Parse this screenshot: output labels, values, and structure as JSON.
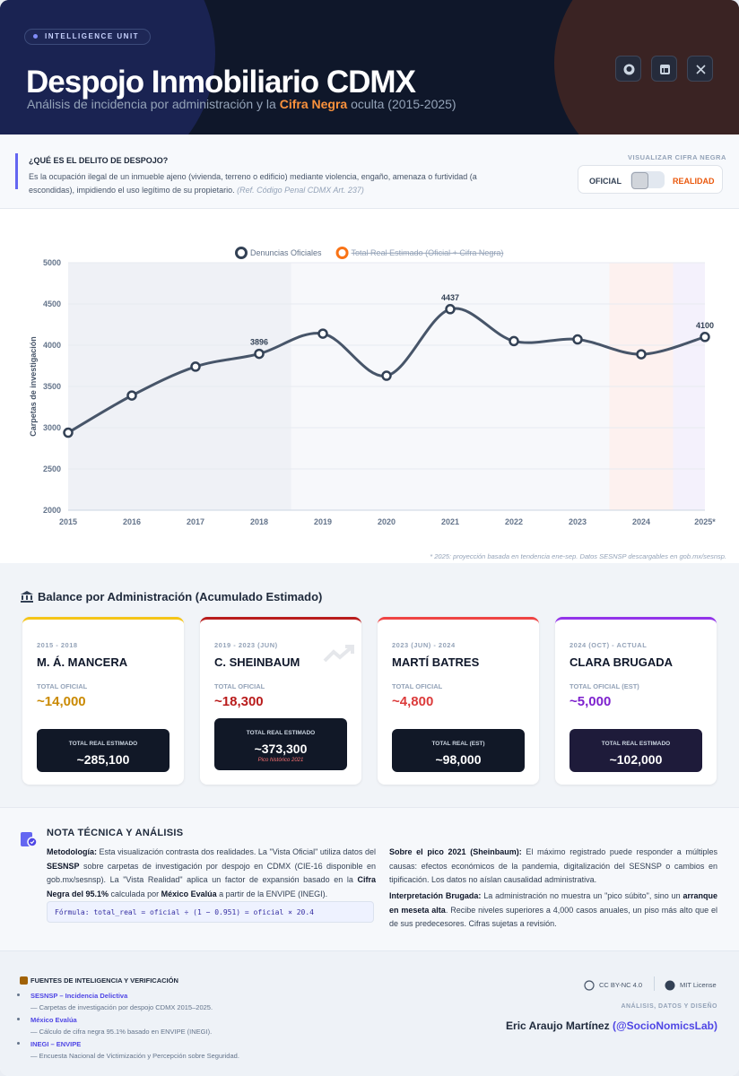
{
  "header": {
    "badge": "INTELLIGENCE UNIT",
    "title": "Despojo Inmobiliario CDMX",
    "subtitle_before": "Análisis de incidencia por administración y la",
    "subtitle_highlight": "Cifra Negra",
    "subtitle_after": "oculta (2015-2025)"
  },
  "definition": {
    "heading": "¿QUÉ ES EL DELITO DE DESPOJO?",
    "text": "Es la ocupación ilegal de un inmueble ajeno (vivienda, terreno o edificio) mediante violencia, engaño, amenaza o furtividad (a escondidas), impidiendo el uso legítimo de su propietario.",
    "ref": "(Ref. Código Penal CDMX Art. 237)"
  },
  "toggle": {
    "label": "VISUALIZAR CIFRA NEGRA",
    "left": "OFICIAL",
    "right": "REALIDAD"
  },
  "chart_data": {
    "type": "line",
    "ylabel": "Carpetas de investigación",
    "categories": [
      "2015",
      "2016",
      "2017",
      "2018",
      "2019",
      "2020",
      "2021",
      "2022",
      "2023",
      "2024",
      "2025*"
    ],
    "series": [
      {
        "name": "Denuncias Oficiales",
        "color": "#475569",
        "values": [
          2940,
          3390,
          3740,
          3896,
          4140,
          3630,
          4437,
          4050,
          4070,
          3890,
          4100
        ],
        "value_labels": [
          null,
          null,
          null,
          "3896",
          null,
          null,
          "4437",
          null,
          null,
          null,
          "4100"
        ]
      },
      {
        "name": "Total Real Estimado (Oficial + Cifra Negra)",
        "color": "#f97316",
        "hidden": true,
        "values": [
          null,
          null,
          null,
          null,
          null,
          null,
          null,
          null,
          null,
          null,
          null
        ]
      }
    ],
    "bands": [
      {
        "start": "2015",
        "end": "2018",
        "color": "#eff1f6"
      },
      {
        "start": "2019",
        "end": "2023",
        "color": "#f7f8fb"
      },
      {
        "start": "2024",
        "end": "2024",
        "color": "#fdf1ef"
      },
      {
        "start": "2025*",
        "end": "2025*",
        "color": "#f4f1fc"
      }
    ],
    "ylim": [
      2000,
      5000
    ],
    "yticks": [
      2000,
      2500,
      3000,
      3500,
      4000,
      4500,
      5000
    ],
    "grid": true,
    "legend": "top",
    "footnote": "* 2025: proyección basada en tendencia ene-sep. Datos SESNSP descargables en gob.mx/sesnsp."
  },
  "balance": {
    "title": "Balance por Administración (Acumulado Estimado)",
    "cards": [
      {
        "period": "2015 - 2018",
        "name": "M. Á. MANCERA",
        "official_label": "TOTAL OFICIAL",
        "official": "~14,000",
        "real_label": "TOTAL REAL ESTIMADO",
        "real": "~285,100",
        "accent": "#f5c518",
        "value_color": "#ca8a04",
        "box": "#111827"
      },
      {
        "period": "2019 - 2023 (JUN)",
        "name": "C. SHEINBAUM",
        "official_label": "TOTAL OFICIAL",
        "official": "~18,300",
        "real_label": "TOTAL REAL ESTIMADO",
        "real": "~373,300",
        "note": "Pico histórico 2021",
        "accent": "#b91c1c",
        "value_color": "#b91c1c",
        "box": "#111827"
      },
      {
        "period": "2023 (JUN) - 2024",
        "name": "MARTÍ BATRES",
        "official_label": "TOTAL OFICIAL",
        "official": "~4,800",
        "real_label": "TOTAL REAL (EST)",
        "real": "~98,000",
        "accent": "#ef4444",
        "value_color": "#dc3b3b",
        "box": "#111827"
      },
      {
        "period": "2024 (OCT) - ACTUAL",
        "name": "CLARA BRUGADA",
        "official_label": "TOTAL OFICIAL (EST)",
        "official": "~5,000",
        "real_label": "TOTAL REAL ESTIMADO",
        "real": "~102,000",
        "accent": "#9333ea",
        "value_color": "#7e22ce",
        "box": "#1e1b3a"
      }
    ]
  },
  "note": {
    "title": "NOTA TÉCNICA Y ANÁLISIS",
    "left": [
      {
        "text": "Metodología:",
        "bold": true
      },
      {
        "text": " Esta visualización contrasta dos realidades. La \"Vista Oficial\" utiliza datos del "
      },
      {
        "text": "SESNSP",
        "bold": true
      },
      {
        "text": " sobre carpetas de investigación por despojo en CDMX (CIE-16 disponible en gob.mx/sesnsp). La \"Vista Realidad\" aplica un factor de expansión basado en la "
      },
      {
        "text": "Cifra Negra del 95.1%",
        "bold": true
      },
      {
        "text": " calculada por "
      },
      {
        "text": "México Evalúa",
        "bold": true
      },
      {
        "text": " a partir de la ENVIPE (INEGI)."
      }
    ],
    "formula": "Fórmula: total_real = oficial ÷ (1 − 0.951) = oficial × 20.4",
    "right1": [
      {
        "text": "Sobre el pico 2021 (Sheinbaum):",
        "bold": true
      },
      {
        "text": " El máximo registrado puede responder a múltiples causas: efectos económicos de la pandemia, digitalización del SESNSP o cambios en tipificación. Los datos no aíslan causalidad administrativa."
      }
    ],
    "right2": [
      {
        "text": "Interpretación Brugada:",
        "bold": true
      },
      {
        "text": " La administración no muestra un \"pico súbito\", sino un "
      },
      {
        "text": "arranque en meseta alta",
        "bold": true
      },
      {
        "text": ". Recibe niveles superiores a 4,000 casos anuales, un piso más alto que el de sus predecesores. Cifras sujetas a revisión."
      }
    ]
  },
  "footer": {
    "sources_title": "FUENTES DE INTELIGENCIA Y VERIFICACIÓN",
    "sources": [
      {
        "name": "SESNSP – Incidencia Delictiva",
        "desc": "— Carpetas de investigación por despojo CDMX 2015–2025."
      },
      {
        "name": "México Evalúa",
        "desc": "— Cálculo de cifra negra 95.1% basado en ENVIPE (INEGI)."
      },
      {
        "name": "INEGI – ENVIPE",
        "desc": "— Encuesta Nacional de Victimización y Percepción sobre Seguridad."
      }
    ],
    "license1": "CC BY-NC 4.0",
    "license2": "MIT License",
    "credit_label": "ANÁLISIS, DATOS Y DISEÑO",
    "author": "Eric Araujo Martínez",
    "handle": "(@SocioNomicsLab)"
  }
}
